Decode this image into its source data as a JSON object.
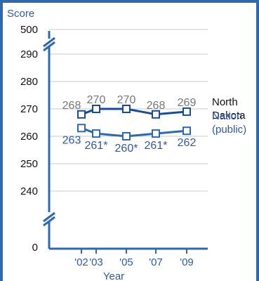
{
  "chart_data": {
    "type": "line",
    "ylabel": "Score",
    "xlabel": "Year",
    "x": [
      "'02",
      "'03",
      "'05",
      "'07",
      "'09"
    ],
    "ticks": [
      "0",
      "240",
      "250",
      "260",
      "270",
      "280",
      "290",
      "500"
    ],
    "series": [
      {
        "name": "North Dakota",
        "name_lines": [
          "North",
          "Dakota"
        ],
        "color": "#1a4d8f",
        "label_color": "#777777",
        "values": [
          268,
          270,
          270,
          268,
          269
        ],
        "value_labels": [
          "268",
          "270",
          "270",
          "268",
          "269"
        ]
      },
      {
        "name": "Nation (public)",
        "name_lines": [
          "Nation",
          "(public)"
        ],
        "color": "#2f69ad",
        "label_color": "#2f5aa0",
        "values": [
          263,
          261,
          260,
          261,
          262
        ],
        "value_labels": [
          "263",
          "261*",
          "260*",
          "261*",
          "262"
        ]
      }
    ],
    "y_range": [
      240,
      290
    ],
    "y_breaks": [
      "500 above 290",
      "0 below 240"
    ],
    "grid": true
  },
  "colors": {
    "border": "#2f69ad",
    "axis": "#2f69ad",
    "grid": "#c8c8c8",
    "text": "#111111"
  }
}
